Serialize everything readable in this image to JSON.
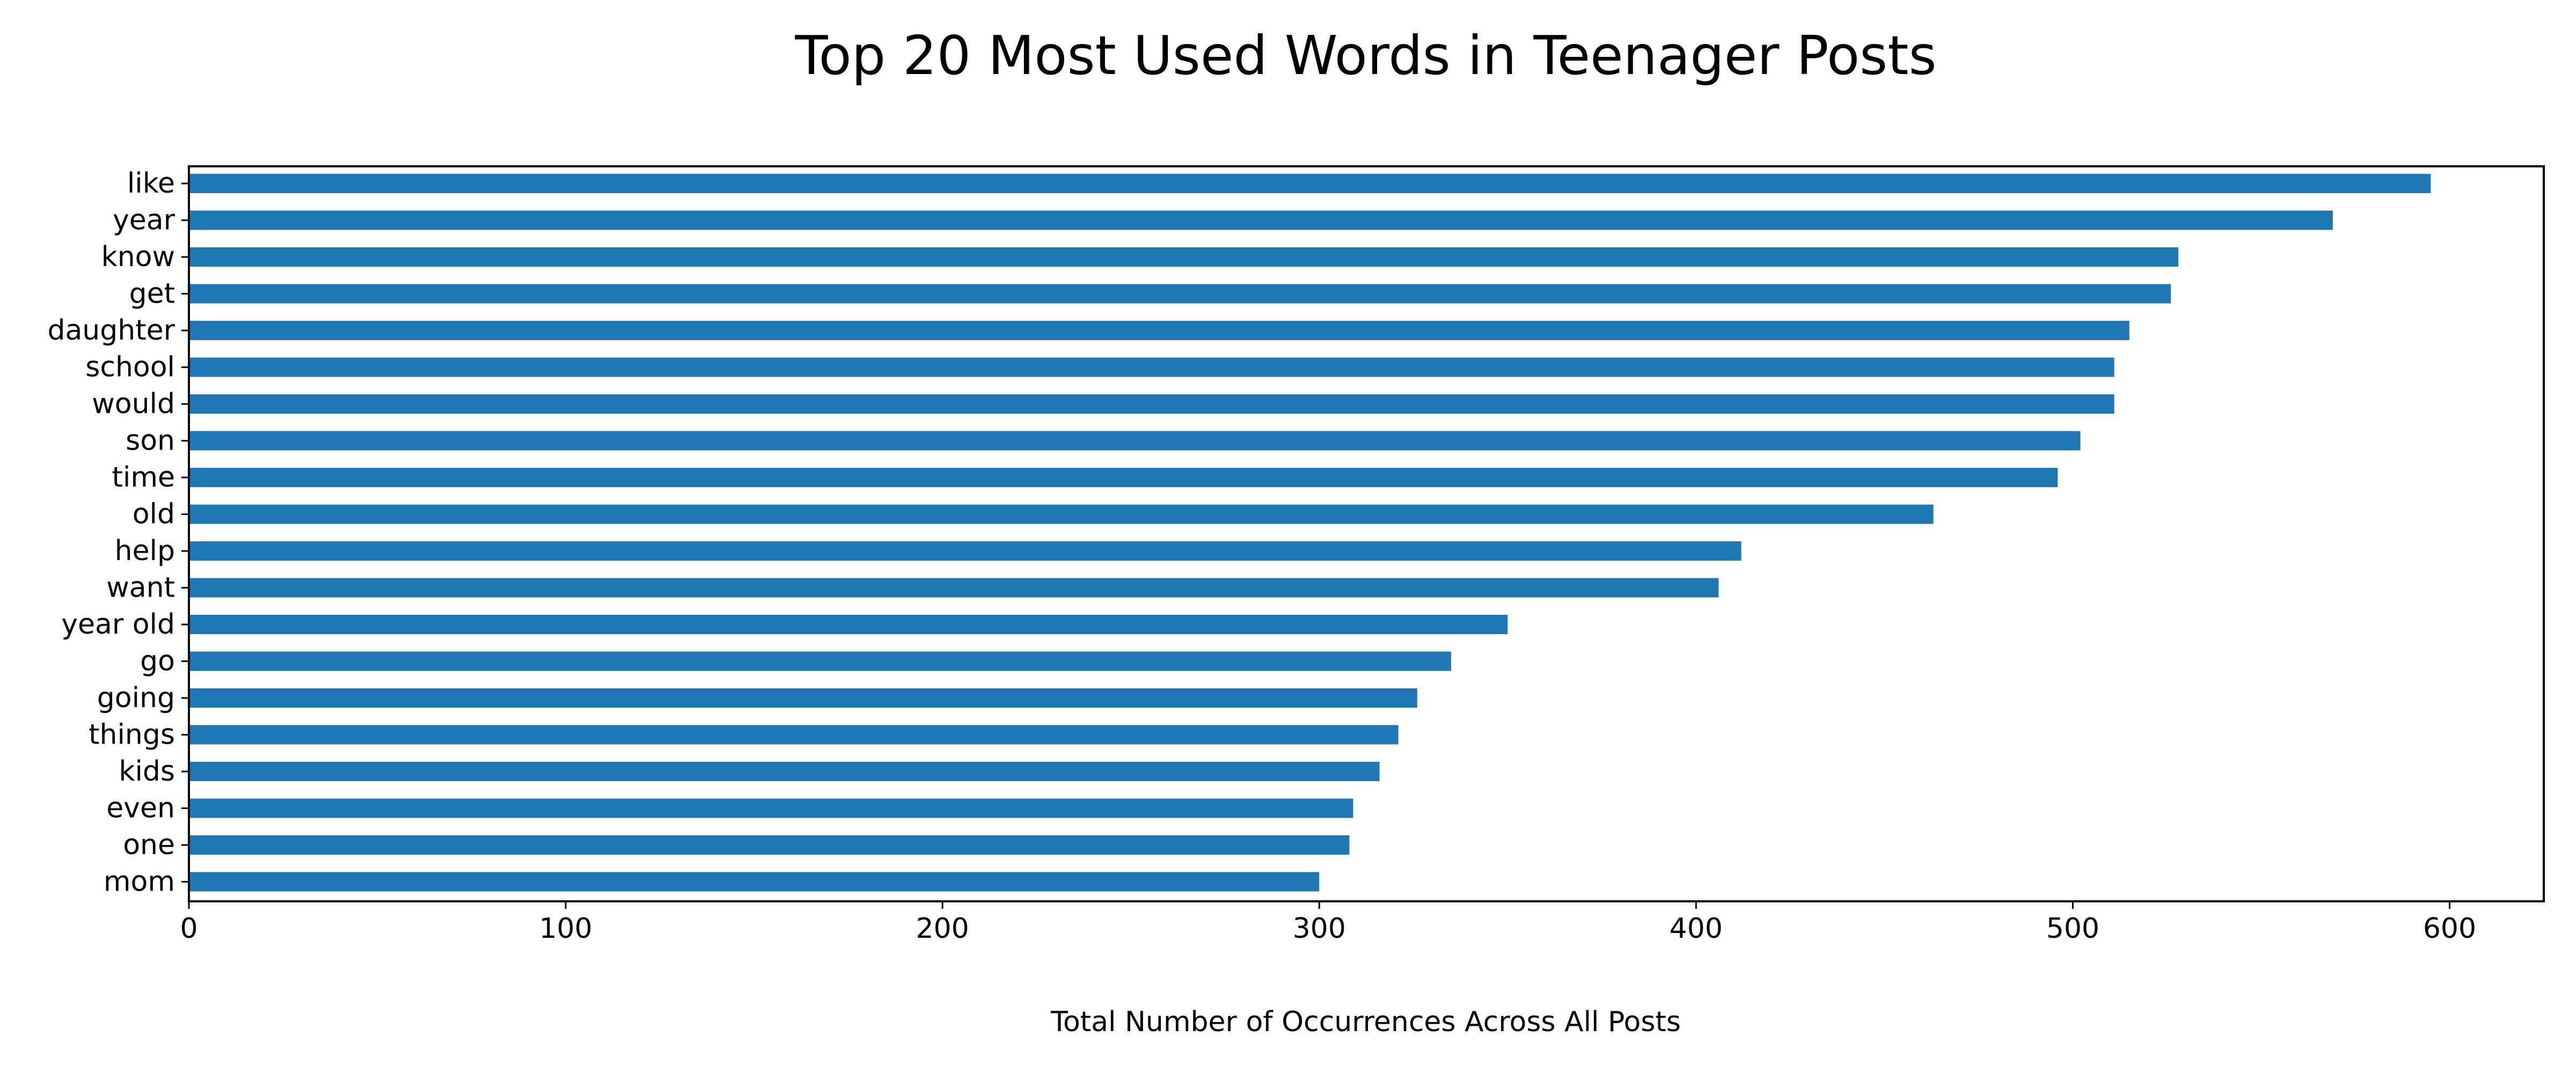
{
  "chart_data": {
    "type": "bar",
    "orientation": "horizontal",
    "title": "Top 20 Most Used Words in Teenager Posts",
    "xlabel": "Total Number of Occurrences Across All Posts",
    "ylabel": "",
    "xlim": [
      0,
      625
    ],
    "xticks": [
      0,
      100,
      200,
      300,
      400,
      500,
      600
    ],
    "grid": false,
    "legend": "none",
    "bar_color": "#1f77b4",
    "categories": [
      "like",
      "year",
      "know",
      "get",
      "daughter",
      "school",
      "would",
      "son",
      "time",
      "old",
      "help",
      "want",
      "year old",
      "go",
      "going",
      "things",
      "kids",
      "even",
      "one",
      "mom"
    ],
    "values": [
      595,
      569,
      528,
      526,
      515,
      511,
      511,
      502,
      496,
      463,
      412,
      406,
      350,
      335,
      326,
      321,
      316,
      309,
      308,
      300
    ]
  }
}
